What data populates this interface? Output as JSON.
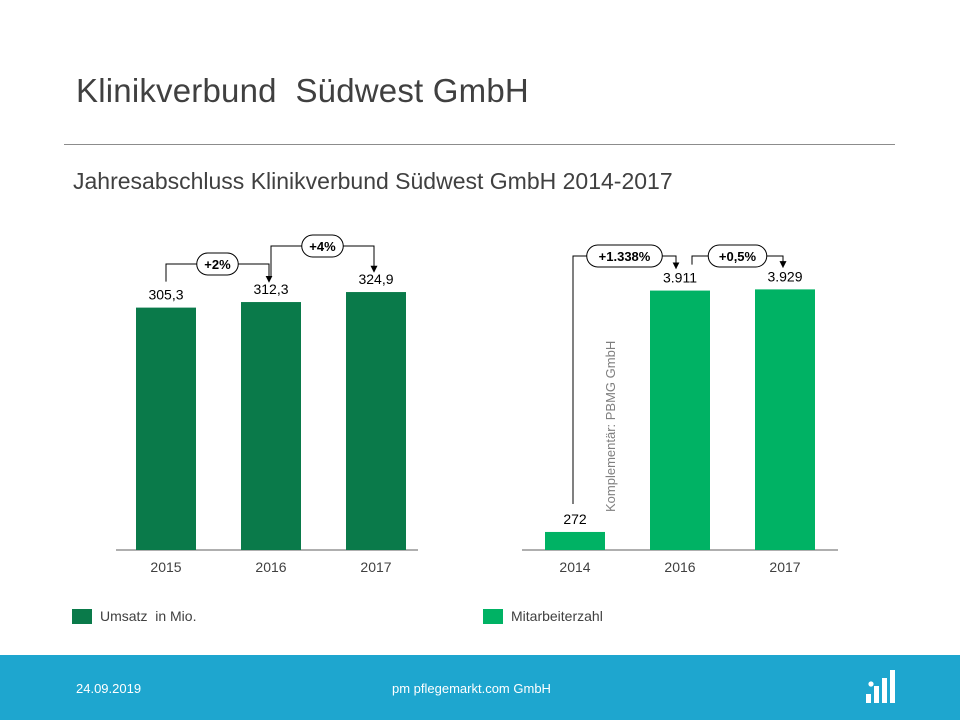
{
  "slide": {
    "title": "Klinikverbund  Südwest GmbH",
    "subtitle": "Jahresabschluss Klinikverbund Südwest GmbH 2014-2017"
  },
  "chart_data": [
    {
      "type": "bar",
      "categories": [
        "2015",
        "2016",
        "2017"
      ],
      "values": [
        305.3,
        312.3,
        324.9
      ],
      "value_labels": [
        "305,3",
        "312,3",
        "324,9"
      ],
      "ylim": [
        0,
        330
      ],
      "color": "#0a7a4a",
      "legend": {
        "label": "Umsatz  in Mio.",
        "position": "bottom-left"
      },
      "annotations": [
        {
          "text": "+2%",
          "from": "2015",
          "to": "2016"
        },
        {
          "text": "+4%",
          "from": "2016",
          "to": "2017"
        }
      ]
    },
    {
      "type": "bar",
      "categories": [
        "2014",
        "2016",
        "2017"
      ],
      "values": [
        272,
        3911,
        3929
      ],
      "value_labels": [
        "272",
        "3.911",
        "3.929"
      ],
      "ylim": [
        0,
        3980
      ],
      "color": "#00b264",
      "legend": {
        "label": "Mitarbeiterzahl",
        "position": "bottom-right"
      },
      "side_note": "Komplementär:  PBMG GmbH",
      "annotations": [
        {
          "text": "+1.338%",
          "from": "2014",
          "to": "2016"
        },
        {
          "text": "+0,5%",
          "from": "2016",
          "to": "2017"
        }
      ]
    }
  ],
  "footer": {
    "date": "24.09.2019",
    "company": "pm pflegemarkt.com GmbH",
    "background": "#1ea6cf",
    "logo_icon": "pflegemarkt-logo-icon"
  }
}
